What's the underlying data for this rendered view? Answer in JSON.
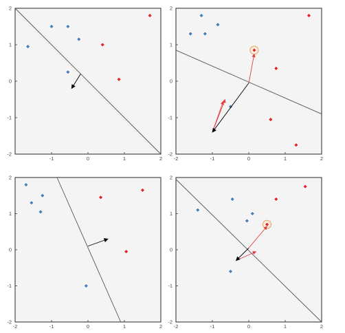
{
  "colors": {
    "positive": "#dd2a2a",
    "negative": "#4a7fb5",
    "boundary": "#555555",
    "normal": "#000000",
    "update": "#e04040",
    "highlight": "#e8a060"
  },
  "chart_data": [
    {
      "type": "scatter",
      "xlim": [
        -2,
        2
      ],
      "ylim": [
        -2,
        2
      ],
      "xticks": [
        "-1",
        "0",
        "1",
        "2"
      ],
      "yticks": [
        "-2",
        "-1",
        "0",
        "1",
        "2"
      ],
      "series": [
        {
          "class": "negative",
          "points": [
            [
              -1.65,
              0.95
            ],
            [
              -1.0,
              1.5
            ],
            [
              -0.55,
              1.5
            ],
            [
              -0.25,
              1.15
            ],
            [
              -0.55,
              0.25
            ]
          ]
        },
        {
          "class": "positive",
          "points": [
            [
              1.7,
              1.8
            ],
            [
              0.4,
              1.0
            ],
            [
              0.85,
              0.05
            ]
          ]
        }
      ],
      "boundary": [
        [
          -2,
          2
        ],
        [
          2,
          -2
        ]
      ],
      "normal": {
        "from": [
          -0.2,
          0.2
        ],
        "to": [
          -0.45,
          -0.2
        ]
      }
    },
    {
      "type": "scatter",
      "xlim": [
        -2,
        2
      ],
      "ylim": [
        -2,
        2
      ],
      "xticks": [
        "-2",
        "-1",
        "0",
        "1",
        "2"
      ],
      "yticks": [
        "-2",
        "-1",
        "0",
        "1",
        "2"
      ],
      "series": [
        {
          "class": "negative",
          "points": [
            [
              -1.3,
              1.8
            ],
            [
              -1.6,
              1.3
            ],
            [
              -1.2,
              1.3
            ],
            [
              -0.85,
              1.55
            ],
            [
              -0.5,
              -0.7
            ]
          ]
        },
        {
          "class": "positive",
          "points": [
            [
              1.65,
              1.8
            ],
            [
              0.15,
              0.85
            ],
            [
              0.75,
              0.35
            ],
            [
              0.6,
              -1.05
            ],
            [
              1.3,
              -1.75
            ]
          ]
        }
      ],
      "boundary": [
        [
          -2,
          0.85
        ],
        [
          2,
          -0.9
        ]
      ],
      "normal": {
        "from": [
          0.0,
          -0.05
        ],
        "to": [
          -1.0,
          -1.4
        ]
      },
      "update": [
        {
          "from": [
            0.0,
            -0.05
          ],
          "to": [
            0.15,
            0.75
          ]
        },
        {
          "from": [
            -1.0,
            -1.4
          ],
          "to": [
            -0.65,
            -0.5
          ]
        },
        {
          "from": [
            -1.0,
            -1.4
          ],
          "to": [
            -0.7,
            -0.55
          ]
        }
      ],
      "highlight": [
        0.15,
        0.85
      ]
    },
    {
      "type": "scatter",
      "xlim": [
        -2,
        2
      ],
      "ylim": [
        -2,
        2
      ],
      "xticks": [
        "-2",
        "-1",
        "0",
        "1",
        "2"
      ],
      "yticks": [
        "-2",
        "-1",
        "0",
        "1",
        "2"
      ],
      "series": [
        {
          "class": "negative",
          "points": [
            [
              -1.7,
              1.8
            ],
            [
              -1.55,
              1.3
            ],
            [
              -1.25,
              1.5
            ],
            [
              -1.3,
              1.05
            ],
            [
              -0.05,
              -1.0
            ]
          ]
        },
        {
          "class": "positive",
          "points": [
            [
              1.5,
              1.65
            ],
            [
              0.35,
              1.45
            ],
            [
              1.05,
              -0.05
            ]
          ]
        }
      ],
      "boundary": [
        [
          -0.85,
          2
        ],
        [
          0.9,
          -2
        ]
      ],
      "normal": {
        "from": [
          0.0,
          0.1
        ],
        "to": [
          0.55,
          0.3
        ]
      }
    },
    {
      "type": "scatter",
      "xlim": [
        -2,
        2
      ],
      "ylim": [
        -2,
        2
      ],
      "xticks": [
        "-2",
        "-1",
        "0",
        "1",
        "2"
      ],
      "yticks": [
        "-2",
        "-1",
        "0",
        "1",
        "2"
      ],
      "series": [
        {
          "class": "negative",
          "points": [
            [
              -1.4,
              1.1
            ],
            [
              -0.45,
              1.4
            ],
            [
              -0.05,
              0.8
            ],
            [
              0.1,
              1.0
            ],
            [
              -0.5,
              -0.6
            ]
          ]
        },
        {
          "class": "positive",
          "points": [
            [
              1.55,
              1.75
            ],
            [
              0.75,
              1.4
            ],
            [
              0.5,
              0.7
            ]
          ]
        }
      ],
      "boundary": [
        [
          -2,
          1.95
        ],
        [
          2,
          -2
        ]
      ],
      "normal": {
        "from": [
          0.0,
          0.05
        ],
        "to": [
          -0.35,
          -0.3
        ]
      },
      "update": [
        {
          "from": [
            0.0,
            0.05
          ],
          "to": [
            0.5,
            0.65
          ]
        },
        {
          "from": [
            -0.35,
            -0.3
          ],
          "to": [
            0.2,
            -0.05
          ]
        }
      ],
      "highlight": [
        0.5,
        0.7
      ]
    }
  ]
}
